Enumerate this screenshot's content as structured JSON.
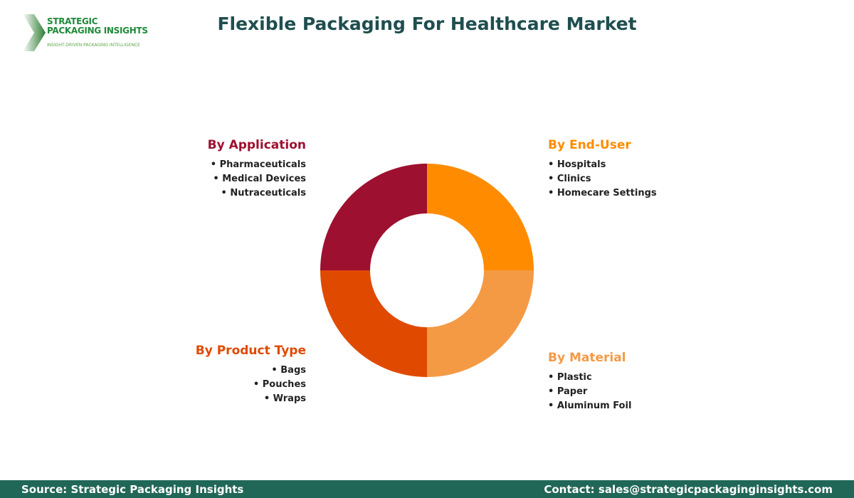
{
  "title": "Flexible Packaging For Healthcare Market",
  "logo": {
    "line1": "STRATEGIC",
    "line2": "PACKAGING INSIGHTS",
    "tagline": "INSIGHT-DRIVEN PACKAGING INTELLIGENCE"
  },
  "segments": [
    {
      "label": "By End-User",
      "color": "#ff8c00",
      "items": [
        "Hospitals",
        "Clinics",
        "Homecare Settings"
      ]
    },
    {
      "label": "By Material",
      "color": "#f49a45",
      "items": [
        "Plastic",
        "Paper",
        "Aluminum Foil"
      ]
    },
    {
      "label": "By Product Type",
      "color": "#e04a00",
      "items": [
        "Bags",
        "Pouches",
        "Wraps"
      ]
    },
    {
      "label": "By Application",
      "color": "#9e1030",
      "items": [
        "Pharmaceuticals",
        "Medical Devices",
        "Nutraceuticals"
      ]
    }
  ],
  "footer": {
    "source": "Source: Strategic Packaging Insights",
    "contact": "Contact: sales@strategicpackaginginsights.com"
  }
}
